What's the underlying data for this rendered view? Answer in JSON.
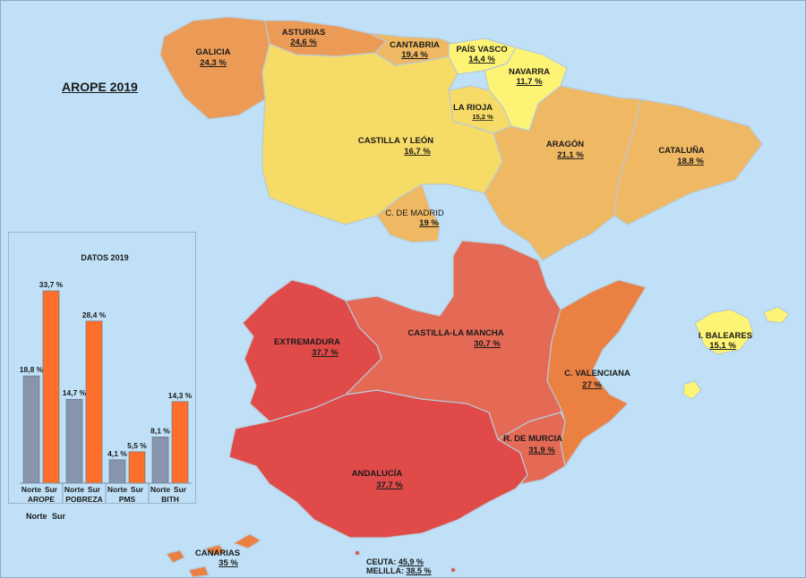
{
  "title": "AROPE 2019",
  "colors": {
    "sea": "#bfe0f6",
    "norte_bar": "#8796ad",
    "sur_bar": "#ff6f2c",
    "scale": [
      "#fdf475",
      "#f6db66",
      "#efb863",
      "#ec9b57",
      "#ea8143",
      "#e46a55",
      "#e04b4a"
    ]
  },
  "regions": [
    {
      "id": "galicia",
      "name": "GALICIA",
      "value": "24,3 %"
    },
    {
      "id": "asturias",
      "name": "ASTURIAS",
      "value": "24,6 %"
    },
    {
      "id": "cantabria",
      "name": "CANTABRIA",
      "value": "19,4 %"
    },
    {
      "id": "pais-vasco",
      "name": "PAÍS VASCO",
      "value": "14,4 %"
    },
    {
      "id": "navarra",
      "name": "NAVARRA",
      "value": "11,7 %"
    },
    {
      "id": "la-rioja",
      "name": "LA RIOJA",
      "value": "15,2 %"
    },
    {
      "id": "castilla-leon",
      "name": "CASTILLA Y LEÓN",
      "value": "16,7 %"
    },
    {
      "id": "aragon",
      "name": "ARAGÓN",
      "value": "21,1 %"
    },
    {
      "id": "cataluna",
      "name": "CATALUÑA",
      "value": "18,8 %"
    },
    {
      "id": "madrid",
      "name": "C. DE MADRID",
      "value": "19 %"
    },
    {
      "id": "castilla-la-mancha",
      "name": "CASTILLA-LA MANCHA",
      "value": "30,7 %"
    },
    {
      "id": "extremadura",
      "name": "EXTREMADURA",
      "value": "37,7 %"
    },
    {
      "id": "valenciana",
      "name": "C. VALENCIANA",
      "value": "27 %"
    },
    {
      "id": "baleares",
      "name": "I. BALEARES",
      "value": "15,1 %"
    },
    {
      "id": "murcia",
      "name": "R. DE MURCIA",
      "value": "31,9 %"
    },
    {
      "id": "andalucia",
      "name": "ANDALUCÍA",
      "value": "37,7 %"
    },
    {
      "id": "canarias",
      "name": "CANARIAS",
      "value": "35 %"
    }
  ],
  "ceuta": {
    "label": "CEUTA:",
    "value": "45,9 %"
  },
  "melilla": {
    "label": "MELILLA:",
    "value": "38,5 %"
  },
  "legend": {
    "norte": "Norte",
    "sur": "Sur"
  },
  "chart_data": {
    "type": "bar",
    "title": "DATOS 2019",
    "categories": [
      "AROPE",
      "POBREZA",
      "PMS",
      "BITH"
    ],
    "subcategory_labels": [
      "Norte",
      "Sur"
    ],
    "series": [
      {
        "name": "Norte",
        "values": [
          18.8,
          14.7,
          4.1,
          8.1
        ],
        "labels": [
          "18,8 %",
          "14,7 %",
          "4,1 %",
          "8,1 %"
        ]
      },
      {
        "name": "Sur",
        "values": [
          33.7,
          28.4,
          5.5,
          14.3
        ],
        "labels": [
          "33,7 %",
          "28,4 %",
          "5,5 %",
          "14,3 %"
        ]
      }
    ],
    "ylim": [
      0,
      37
    ],
    "grid": false,
    "legend": "bottom"
  }
}
